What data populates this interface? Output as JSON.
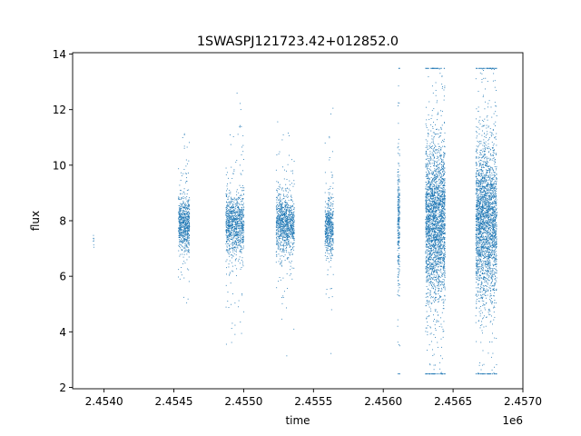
{
  "chart_data": {
    "type": "scatter",
    "title": "1SWASPJ121723.42+012852.0",
    "xlabel": "time",
    "ylabel": "flux",
    "x_offset_label": "1e6",
    "x_scale_factor": 1000000,
    "xlim": [
      2453775,
      2457000
    ],
    "ylim": [
      1.95,
      14.05
    ],
    "xticks": [
      2454000,
      2454500,
      2455000,
      2455500,
      2456000,
      2456500,
      2457000
    ],
    "xtick_labels": [
      "2.4540",
      "2.4545",
      "2.4550",
      "2.4555",
      "2.4560",
      "2.4565",
      "2.4570"
    ],
    "yticks": [
      2,
      4,
      6,
      8,
      10,
      12,
      14
    ],
    "ytick_labels": [
      "2",
      "4",
      "6",
      "8",
      "10",
      "12",
      "14"
    ],
    "grid": false,
    "legend": "none",
    "marker_color": "#1f77b4",
    "series": [
      {
        "clusters": [
          {
            "x_start": 2453920,
            "x_end": 2453925,
            "y_center": 7.3,
            "y_spread": 0.5,
            "n": 8
          },
          {
            "x_start": 2454530,
            "x_end": 2454610,
            "y_center": 7.9,
            "y_spread": 1.5,
            "n": 700
          },
          {
            "x_start": 2454870,
            "x_end": 2455000,
            "y_center": 7.9,
            "y_spread": 1.8,
            "n": 1000
          },
          {
            "x_start": 2455230,
            "x_end": 2455360,
            "y_center": 7.9,
            "y_spread": 1.7,
            "n": 1000
          },
          {
            "x_start": 2455580,
            "x_end": 2455640,
            "y_center": 7.8,
            "y_spread": 1.5,
            "n": 500
          },
          {
            "x_start": 2456100,
            "x_end": 2456115,
            "y_center": 8.0,
            "y_spread": 3.5,
            "n": 260
          },
          {
            "x_start": 2456300,
            "x_end": 2456440,
            "y_center": 8.0,
            "y_spread": 4.5,
            "n": 2600
          },
          {
            "x_start": 2456660,
            "x_end": 2456810,
            "y_center": 8.0,
            "y_spread": 4.5,
            "n": 2600
          }
        ],
        "x_range": [
          2453920,
          2456810
        ],
        "y_range": [
          2.5,
          13.5
        ]
      }
    ]
  }
}
